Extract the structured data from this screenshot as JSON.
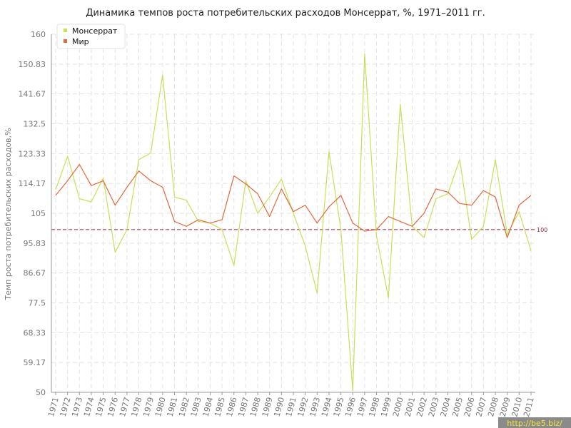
{
  "chart_data": {
    "type": "line",
    "title": "Динамика темпов роста потребительских расходов Монсеррат, %, 1971–2011 гг.",
    "xlabel": "",
    "ylabel": "Темп роста потребительских расходов,%",
    "ylim": [
      50,
      160
    ],
    "yticks": [
      "50",
      "59.17",
      "68.33",
      "77.5",
      "86.67",
      "95.83",
      "105",
      "114.17",
      "123.33",
      "132.5",
      "141.67",
      "150.83",
      "160"
    ],
    "x": [
      "1971",
      "1972",
      "1973",
      "1974",
      "1975",
      "1976",
      "1977",
      "1978",
      "1979",
      "1980",
      "1981",
      "1982",
      "1983",
      "1984",
      "1985",
      "1986",
      "1987",
      "1988",
      "1989",
      "1990",
      "1991",
      "1992",
      "1993",
      "1994",
      "1995",
      "1996",
      "1997",
      "1998",
      "1999",
      "2000",
      "2001",
      "2002",
      "2003",
      "2004",
      "2005",
      "2006",
      "2007",
      "2008",
      "2009",
      "2010",
      "2011"
    ],
    "series": [
      {
        "name": "Монсеррат",
        "color": "#c6e05a",
        "values": [
          112.3,
          122.5,
          109.5,
          108.5,
          115.8,
          93.0,
          100.0,
          121.5,
          123.5,
          147.5,
          110.0,
          109.0,
          102.5,
          102.0,
          100.0,
          89.0,
          115.0,
          105.0,
          110.0,
          115.5,
          105.0,
          95.0,
          80.5,
          124.0,
          100.0,
          50.5,
          154.0,
          98.0,
          79.0,
          138.5,
          101.0,
          97.5,
          109.5,
          111.0,
          121.5,
          97.0,
          101.0,
          121.5,
          98.5,
          105.5,
          93.5
        ]
      },
      {
        "name": "Мир",
        "color": "#e06a3c",
        "values": [
          110.5,
          115.0,
          120.0,
          113.5,
          115.0,
          107.5,
          113.0,
          118.0,
          115.0,
          113.0,
          102.5,
          101.0,
          103.0,
          102.0,
          103.0,
          116.5,
          114.0,
          111.0,
          104.0,
          112.5,
          105.5,
          107.5,
          102.0,
          107.0,
          110.5,
          102.0,
          99.5,
          100.0,
          104.0,
          102.5,
          101.0,
          105.0,
          112.5,
          111.5,
          108.0,
          107.5,
          112.0,
          110.0,
          97.5,
          107.5,
          110.5
        ]
      }
    ],
    "reference_line": {
      "value": 100,
      "label": "100",
      "color": "#a0405f"
    },
    "grid": true,
    "legend": "top-left"
  },
  "watermark": "http://be5.biz/"
}
